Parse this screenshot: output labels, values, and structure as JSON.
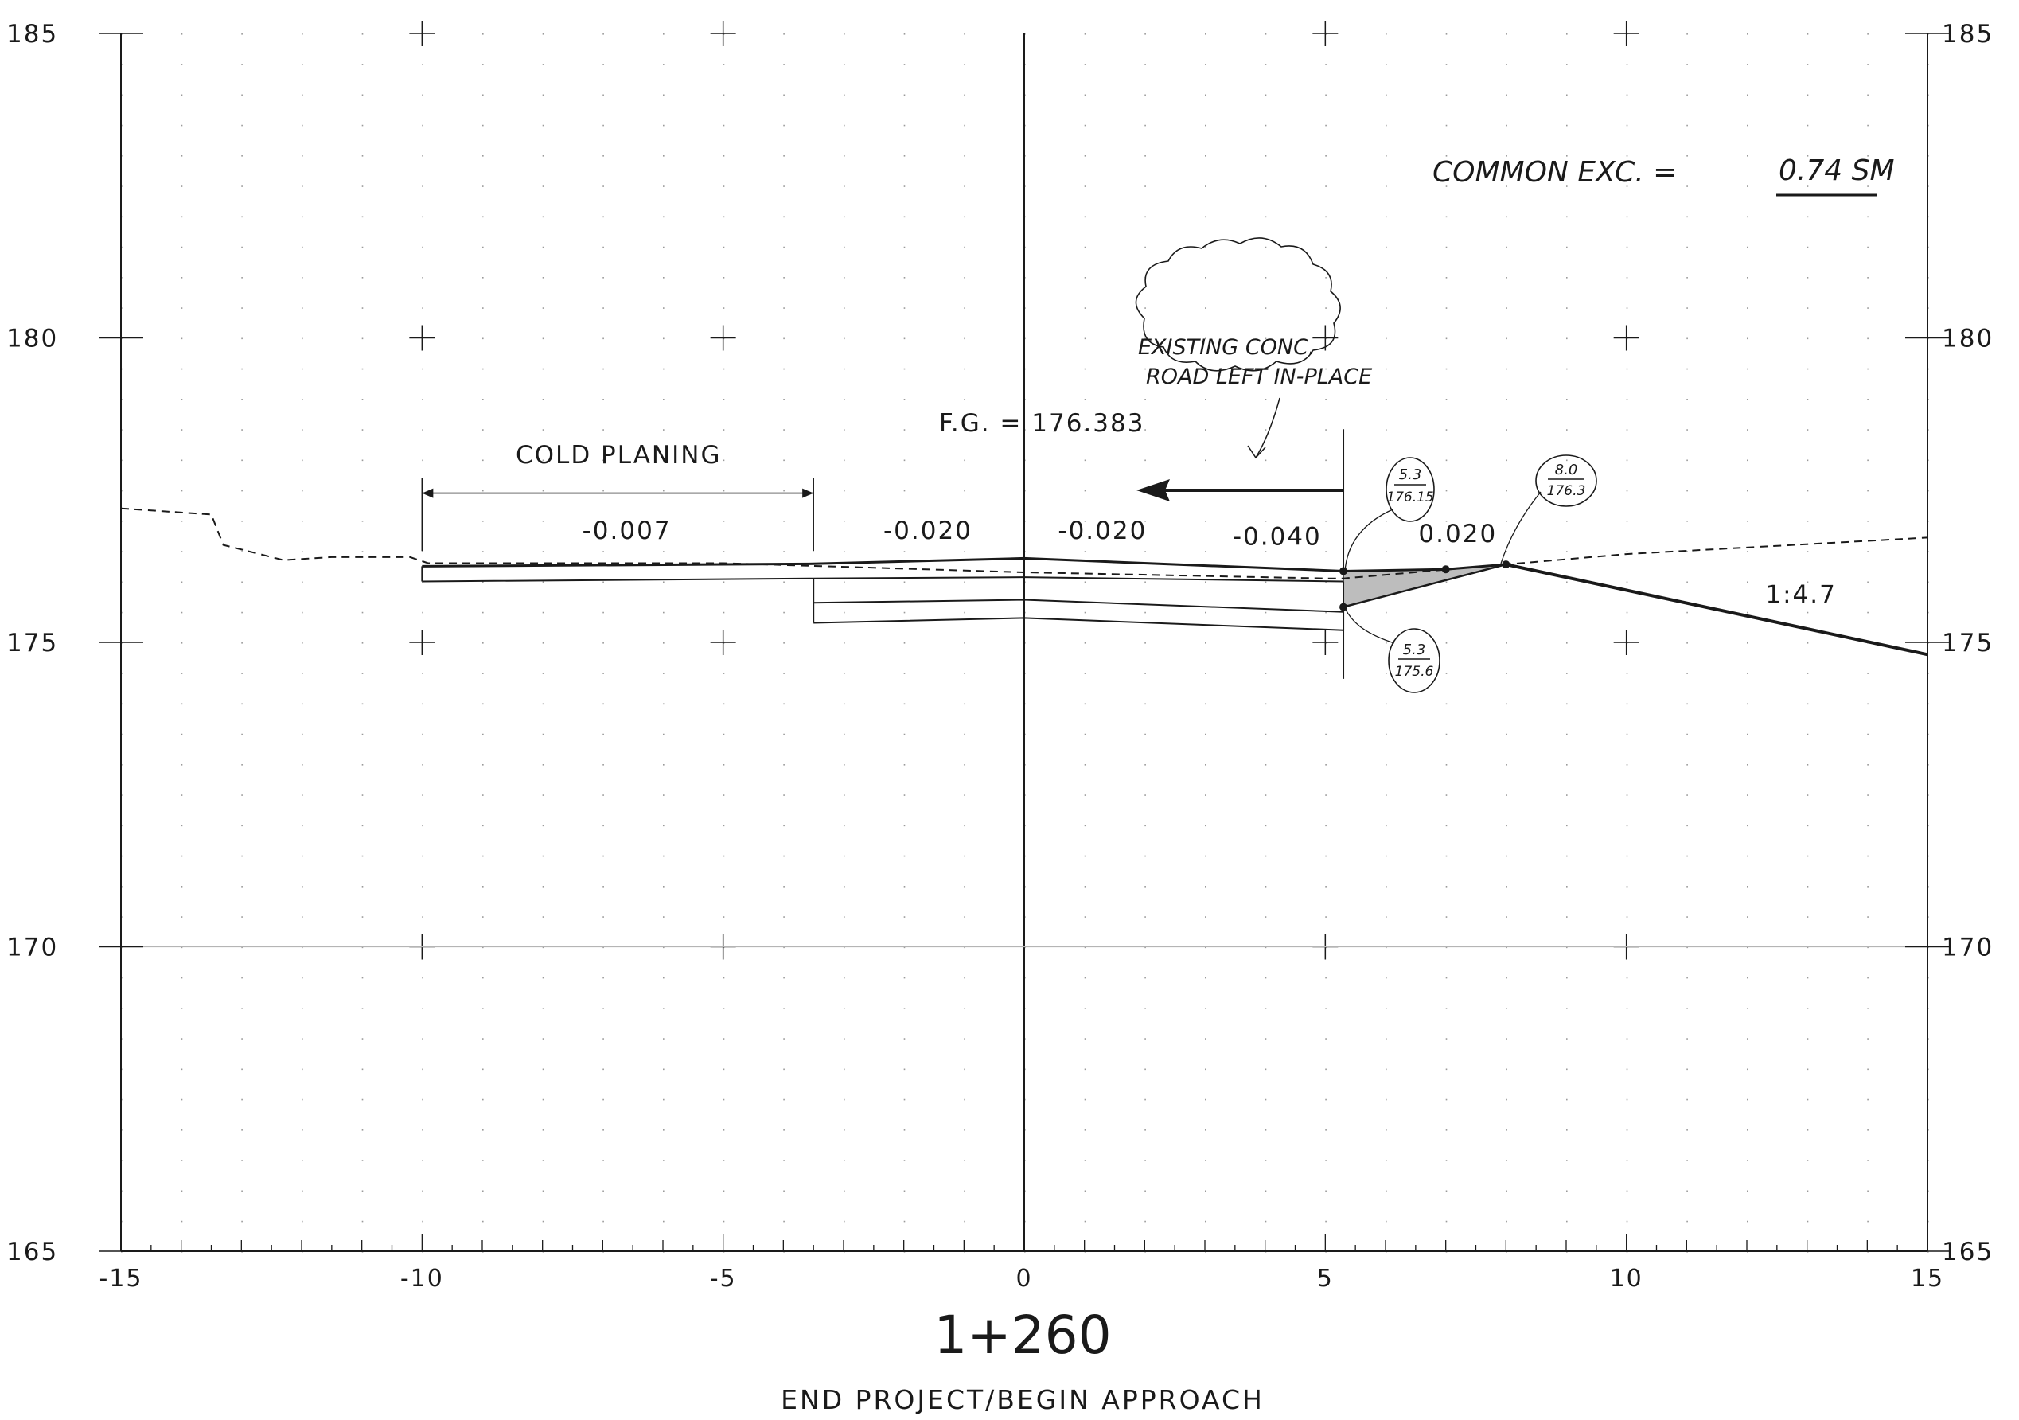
{
  "station": "1+260",
  "subtitle": "END PROJECT/BEGIN APPROACH",
  "common_exc": {
    "label": "COMMON EXC. =",
    "value": "0.74 SM"
  },
  "cloud_note": [
    "EXISTING CONC.",
    "ROAD LEFT IN-PLACE"
  ],
  "fg_label": "F.G. = 176.383",
  "cold_planing": "COLD PLANING",
  "slope_labels": [
    {
      "text": "-0.007",
      "offset": -6.6,
      "elev": 176.7
    },
    {
      "text": "-0.020",
      "offset": -1.6,
      "elev": 176.7
    },
    {
      "text": "-0.020",
      "offset": 1.3,
      "elev": 176.7
    },
    {
      "text": "-0.040",
      "offset": 4.2,
      "elev": 176.6
    },
    {
      "text": "0.020",
      "offset": 7.2,
      "elev": 176.65
    },
    {
      "text": "1:4.7",
      "offset": 12.9,
      "elev": 175.65
    }
  ],
  "callouts": [
    {
      "top": "5.3",
      "bottom": "176.15"
    },
    {
      "top": "8.0",
      "bottom": "176.3"
    },
    {
      "top": "5.3",
      "bottom": "175.6"
    }
  ],
  "axes": {
    "x_ticks": [
      "-15",
      "-10",
      "-5",
      "0",
      "5",
      "10",
      "15"
    ],
    "y_ticks": [
      "185",
      "180",
      "175",
      "170",
      "165"
    ],
    "x_range": [
      -15,
      15
    ],
    "y_range": [
      165,
      185
    ]
  },
  "existing_ground": [
    [
      -15,
      177.2
    ],
    [
      -13.5,
      177.1
    ],
    [
      -13.3,
      176.6
    ],
    [
      -12.3,
      176.35
    ],
    [
      -11.5,
      176.4
    ],
    [
      -10.2,
      176.4
    ],
    [
      -9.9,
      176.3
    ],
    [
      -5,
      176.3
    ],
    [
      0,
      176.15
    ],
    [
      5,
      176.05
    ],
    [
      5.3,
      176.05
    ],
    [
      8,
      176.28
    ],
    [
      10,
      176.45
    ],
    [
      15,
      176.72
    ]
  ],
  "finished_grade": [
    [
      -10,
      176.25
    ],
    [
      -3.5,
      176.29
    ],
    [
      0,
      176.38
    ],
    [
      5.3,
      176.17
    ],
    [
      7,
      176.2
    ],
    [
      8,
      176.28
    ]
  ],
  "pavement_bottom": [
    [
      -10,
      176.0
    ],
    [
      -3.5,
      176.05
    ],
    [
      0,
      176.07
    ],
    [
      5.3,
      176.0
    ]
  ],
  "base_top": [
    [
      -3.5,
      175.65
    ],
    [
      0,
      175.7
    ],
    [
      5.3,
      175.5
    ]
  ],
  "base_bottom": [
    [
      -3.5,
      175.32
    ],
    [
      0,
      175.4
    ],
    [
      5.3,
      175.2
    ]
  ],
  "side_slope": [
    [
      8,
      176.28
    ],
    [
      15,
      174.8
    ]
  ],
  "foreslope": [
    [
      5.3,
      175.58
    ],
    [
      8,
      176.28
    ]
  ]
}
